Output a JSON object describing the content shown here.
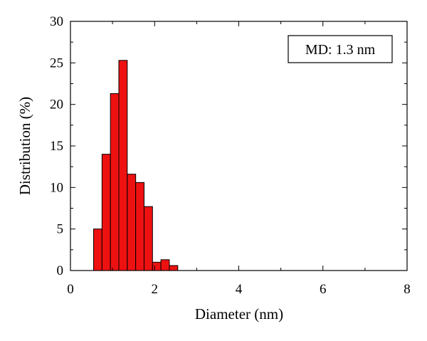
{
  "chart_data": {
    "type": "bar",
    "title": "",
    "xlabel": "Diameter (nm)",
    "ylabel": "Distribution (%)",
    "xlim": [
      0,
      8
    ],
    "ylim": [
      0,
      30
    ],
    "x_ticks": [
      "0",
      "2",
      "4",
      "6",
      "8"
    ],
    "y_ticks": [
      "0",
      "5",
      "10",
      "15",
      "20",
      "25",
      "30"
    ],
    "bin_width": 0.2,
    "x": [
      0.65,
      0.85,
      1.05,
      1.25,
      1.45,
      1.65,
      1.85,
      2.05,
      2.25,
      2.45
    ],
    "values": [
      5.0,
      14.0,
      21.3,
      25.3,
      11.6,
      10.6,
      7.7,
      1.0,
      1.3,
      0.6
    ],
    "annotation": "MD: 1.3 nm",
    "grid": false,
    "colors": {
      "bar_fill": "#ee1111",
      "bar_stroke": "#000000"
    }
  }
}
